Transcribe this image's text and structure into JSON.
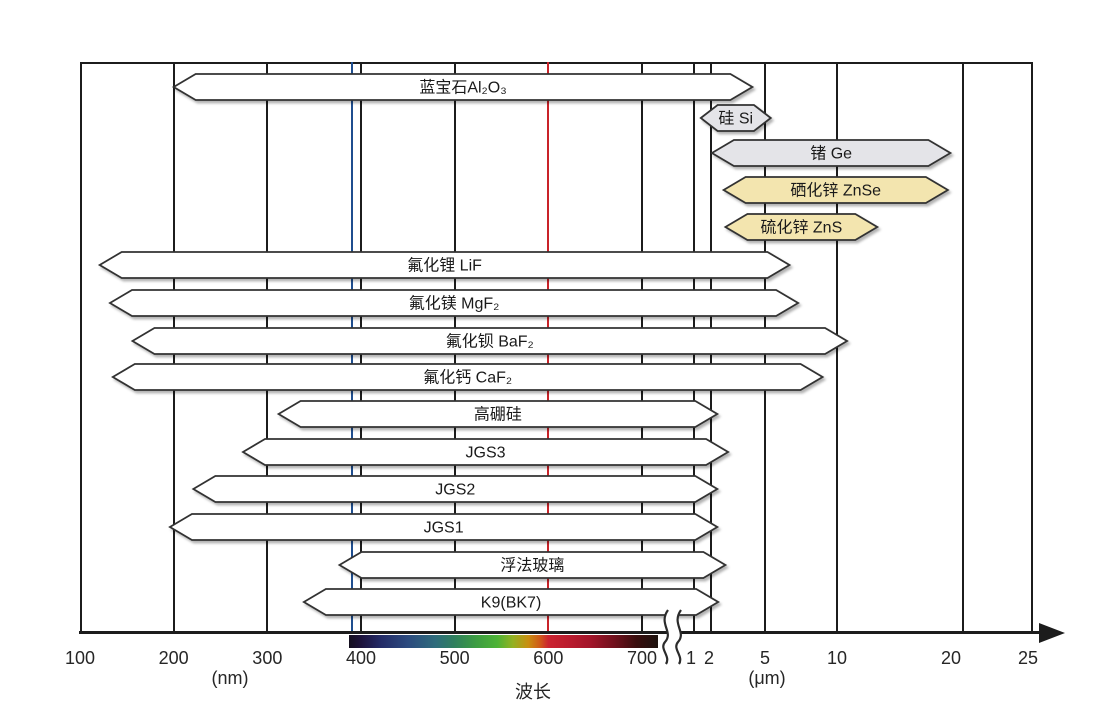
{
  "figure": {
    "background": "#ffffff",
    "axis": {
      "xlabel": "波长",
      "unit_left": "(nm)",
      "unit_right": "(μm)",
      "line_color": "#1c1c1c",
      "ticks": [
        {
          "label": "100",
          "nm": 100
        },
        {
          "label": "200",
          "nm": 200
        },
        {
          "label": "300",
          "nm": 300
        },
        {
          "label": "400",
          "nm": 400
        },
        {
          "label": "500",
          "nm": 500
        },
        {
          "label": "600",
          "nm": 600
        },
        {
          "label": "700",
          "nm": 700
        },
        {
          "label": "1",
          "nm": 1000,
          "x_override": 691
        },
        {
          "label": "2",
          "nm": 2000,
          "x_override": 709
        },
        {
          "label": "5",
          "nm": 5000
        },
        {
          "label": "10",
          "nm": 10000
        },
        {
          "label": "20",
          "nm": 20000,
          "x_override": 951
        },
        {
          "label": "25",
          "nm": 25000,
          "x_override": 1028
        }
      ],
      "gridlines_nm": [
        200,
        300,
        400,
        500,
        700,
        1000,
        2000,
        5000,
        10000,
        20000
      ],
      "break_between": [
        "700 nm",
        "1 μm"
      ],
      "reference_lines": [
        {
          "name": "blue-line",
          "nm": 390,
          "color": "#1f4e8f"
        },
        {
          "name": "red-line",
          "nm": 600,
          "color": "#c92329"
        }
      ]
    },
    "spectrum_bar": {
      "start_nm": 388,
      "end_nm": 719,
      "stops": [
        {
          "pct": 0,
          "color": "#140f1e"
        },
        {
          "pct": 4,
          "color": "#1d123c"
        },
        {
          "pct": 10,
          "color": "#232a66"
        },
        {
          "pct": 19,
          "color": "#2c4a7f"
        },
        {
          "pct": 28,
          "color": "#2e6c7c"
        },
        {
          "pct": 34,
          "color": "#2f7f5e"
        },
        {
          "pct": 41,
          "color": "#3c9c42"
        },
        {
          "pct": 48,
          "color": "#4db336"
        },
        {
          "pct": 53,
          "color": "#93b122"
        },
        {
          "pct": 58,
          "color": "#c98f10"
        },
        {
          "pct": 62,
          "color": "#d0561a"
        },
        {
          "pct": 64.5,
          "color": "#cb2430"
        },
        {
          "pct": 71,
          "color": "#bb1b2e"
        },
        {
          "pct": 78,
          "color": "#a3152a"
        },
        {
          "pct": 86,
          "color": "#6f101c"
        },
        {
          "pct": 93,
          "color": "#390d0d"
        },
        {
          "pct": 100,
          "color": "#1d130e"
        }
      ]
    }
  },
  "chart_data": {
    "type": "bar",
    "subtype": "horizontal-range-bars (optical material transmission ranges)",
    "xlabel": "波长",
    "x_units": "nm from 100–700, axis break, then μm from 1–25",
    "x_ticks": [
      100,
      200,
      300,
      400,
      500,
      600,
      700,
      1000,
      2000,
      5000,
      10000,
      20000,
      25000
    ],
    "grid": true,
    "materials": [
      {
        "label": "蓝宝石Al₂O₃",
        "range_nm": [
          200,
          4300
        ],
        "fill": "#ffffff"
      },
      {
        "label": "硅 Si",
        "range_nm": [
          1400,
          5400
        ],
        "fill": "#e4e4e8"
      },
      {
        "label": "锗 Ge",
        "range_nm": [
          2050,
          19000
        ],
        "fill": "#e4e4e8"
      },
      {
        "label": "硒化锌 ZnSe",
        "range_nm": [
          2700,
          18800
        ],
        "fill": "#f3e5af"
      },
      {
        "label": "硫化锌 ZnS",
        "range_nm": [
          2800,
          13200
        ],
        "fill": "#f3e5af"
      },
      {
        "label": "氟化锂 LiF",
        "range_nm": [
          121,
          6700
        ],
        "fill": "#ffffff"
      },
      {
        "label": "氟化镁 MgF₂",
        "range_nm": [
          132,
          7300
        ],
        "fill": "#ffffff"
      },
      {
        "label": "氟化钡 BaF₂",
        "range_nm": [
          156,
          10800
        ],
        "fill": "#ffffff"
      },
      {
        "label": "氟化钙 CaF₂",
        "range_nm": [
          135,
          9000
        ],
        "fill": "#ffffff"
      },
      {
        "label": "高硼硅",
        "range_nm": [
          312,
          2350
        ],
        "fill": "#ffffff"
      },
      {
        "label": "JGS3",
        "range_nm": [
          274,
          2950
        ],
        "fill": "#ffffff"
      },
      {
        "label": "JGS2",
        "range_nm": [
          221,
          2350
        ],
        "fill": "#ffffff"
      },
      {
        "label": "JGS1",
        "range_nm": [
          196,
          2350
        ],
        "fill": "#ffffff"
      },
      {
        "label": "浮法玻璃",
        "range_nm": [
          377,
          2800
        ],
        "fill": "#ffffff"
      },
      {
        "label": "K9(BK7)",
        "range_nm": [
          339,
          2400
        ],
        "fill": "#ffffff"
      }
    ]
  }
}
